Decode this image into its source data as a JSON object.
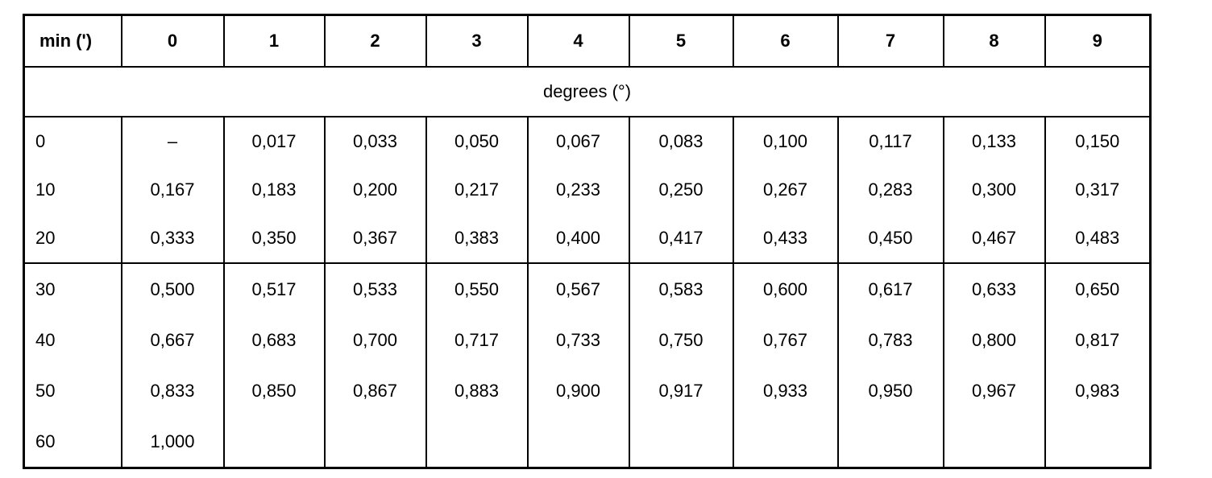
{
  "table": {
    "header": [
      "min (')",
      "0",
      "1",
      "2",
      "3",
      "4",
      "5",
      "6",
      "7",
      "8",
      "9"
    ],
    "subheader": "degrees (°)",
    "row_groups": [
      [
        [
          "0",
          "–",
          "0,017",
          "0,033",
          "0,050",
          "0,067",
          "0,083",
          "0,100",
          "0,117",
          "0,133",
          "0,150"
        ],
        [
          "10",
          "0,167",
          "0,183",
          "0,200",
          "0,217",
          "0,233",
          "0,250",
          "0,267",
          "0,283",
          "0,300",
          "0,317"
        ],
        [
          "20",
          "0,333",
          "0,350",
          "0,367",
          "0,383",
          "0,400",
          "0,417",
          "0,433",
          "0,450",
          "0,467",
          "0,483"
        ]
      ],
      [
        [
          "30",
          "0,500",
          "0,517",
          "0,533",
          "0,550",
          "0,567",
          "0,583",
          "0,600",
          "0,617",
          "0,633",
          "0,650"
        ],
        [
          "40",
          "0,667",
          "0,683",
          "0,700",
          "0,717",
          "0,733",
          "0,750",
          "0,767",
          "0,783",
          "0,800",
          "0,817"
        ],
        [
          "50",
          "0,833",
          "0,850",
          "0,867",
          "0,883",
          "0,900",
          "0,917",
          "0,933",
          "0,950",
          "0,967",
          "0,983"
        ],
        [
          "60",
          "1,000"
        ]
      ]
    ]
  }
}
